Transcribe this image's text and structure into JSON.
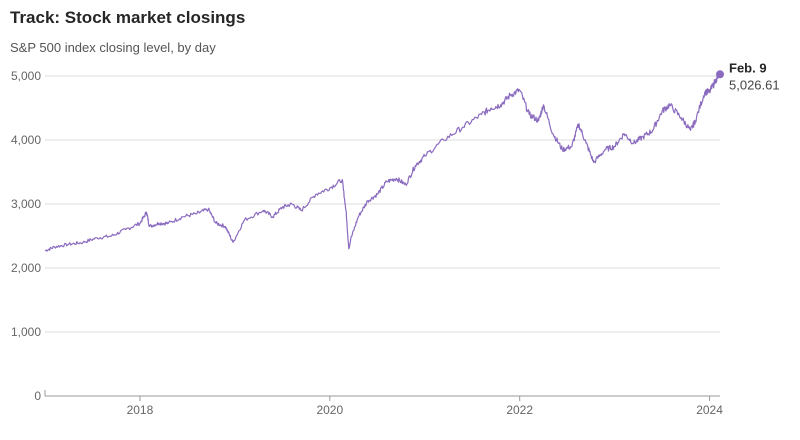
{
  "header": {
    "title": "Track: Stock market closings",
    "subtitle": "S&P 500 index closing level, by day"
  },
  "colors": {
    "line": "#8a6bbf",
    "grid": "#dddddd",
    "axis": "#999999"
  },
  "chart_data": {
    "type": "line",
    "title": "Track: Stock market closings",
    "subtitle": "S&P 500 index closing level, by day",
    "xlabel": "",
    "ylabel": "",
    "xlim": [
      2017.0,
      2024.11
    ],
    "ylim": [
      0,
      5000
    ],
    "yticks": [
      0,
      1000,
      2000,
      3000,
      4000,
      5000
    ],
    "ytick_labels": [
      "0",
      "1,000",
      "2,000",
      "3,000",
      "4,000",
      "5,000"
    ],
    "xticks": [
      2018,
      2020,
      2022,
      2024
    ],
    "xtick_labels": [
      "2018",
      "2020",
      "2022",
      "2024"
    ],
    "grid": true,
    "series": [
      {
        "name": "S&P 500",
        "x": [
          2017.0,
          2017.1,
          2017.25,
          2017.4,
          2017.55,
          2017.7,
          2017.85,
          2018.0,
          2018.07,
          2018.1,
          2018.2,
          2018.3,
          2018.45,
          2018.6,
          2018.72,
          2018.8,
          2018.9,
          2018.98,
          2019.1,
          2019.3,
          2019.4,
          2019.5,
          2019.6,
          2019.7,
          2019.85,
          2020.0,
          2020.13,
          2020.17,
          2020.2,
          2020.22,
          2020.3,
          2020.4,
          2020.5,
          2020.6,
          2020.7,
          2020.8,
          2020.9,
          2021.0,
          2021.2,
          2021.4,
          2021.6,
          2021.7,
          2021.8,
          2021.9,
          2022.0,
          2022.1,
          2022.2,
          2022.25,
          2022.35,
          2022.45,
          2022.55,
          2022.62,
          2022.7,
          2022.78,
          2022.9,
          2023.0,
          2023.1,
          2023.2,
          2023.3,
          2023.4,
          2023.5,
          2023.58,
          2023.7,
          2023.8,
          2023.85,
          2023.95,
          2024.0,
          2024.07,
          2024.11
        ],
        "values": [
          2270,
          2330,
          2370,
          2400,
          2470,
          2500,
          2600,
          2700,
          2870,
          2650,
          2700,
          2700,
          2800,
          2850,
          2920,
          2700,
          2650,
          2400,
          2750,
          2900,
          2800,
          2950,
          3000,
          2900,
          3150,
          3250,
          3380,
          2900,
          2300,
          2450,
          2800,
          3050,
          3150,
          3350,
          3400,
          3300,
          3600,
          3750,
          4000,
          4200,
          4400,
          4500,
          4550,
          4700,
          4780,
          4400,
          4300,
          4550,
          4100,
          3850,
          3900,
          4250,
          3950,
          3650,
          3850,
          3900,
          4100,
          3950,
          4050,
          4150,
          4450,
          4550,
          4350,
          4150,
          4300,
          4750,
          4750,
          4950,
          5026.61
        ]
      }
    ],
    "annotations": [
      {
        "label": "Feb. 9",
        "value_label": "5,026.61",
        "x": 2024.11,
        "y": 5026.61
      }
    ]
  }
}
